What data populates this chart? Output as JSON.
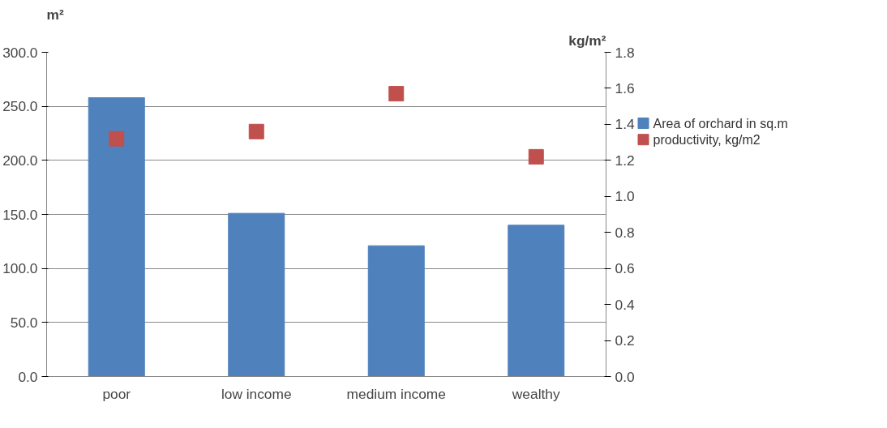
{
  "chart_data": {
    "type": "bar",
    "ylabel": "m²",
    "y2label": "kg/m²",
    "categories": [
      "poor",
      "low income",
      "medium income",
      "wealthy"
    ],
    "series": [
      {
        "name": "Area of orchard in sq.m",
        "color": "#4f81bd",
        "values": [
          258,
          151,
          121,
          140
        ]
      },
      {
        "name": "productivity, kg/m2",
        "type": "scatter",
        "axis": "y2",
        "marker": "square",
        "color": "#c0504d",
        "values": [
          1.32,
          1.36,
          1.57,
          1.22
        ]
      }
    ],
    "ylim": [
      0,
      300
    ],
    "yticks": [
      {
        "value": 0,
        "label": "0.0"
      },
      {
        "value": 50,
        "label": "50.0"
      },
      {
        "value": 100,
        "label": "100.0"
      },
      {
        "value": 150,
        "label": "150.0"
      },
      {
        "value": 200,
        "label": "200.0"
      },
      {
        "value": 250,
        "label": "250.0"
      },
      {
        "value": 300,
        "label": "300.0"
      }
    ],
    "y2lim": [
      0,
      1.8
    ],
    "y2ticks": [
      {
        "value": 0,
        "label": "0.0"
      },
      {
        "value": 0.2,
        "label": "0.2"
      },
      {
        "value": 0.4,
        "label": "0.4"
      },
      {
        "value": 0.6,
        "label": "0.6"
      },
      {
        "value": 0.8,
        "label": "0.8"
      },
      {
        "value": 1.0,
        "label": "1.0"
      },
      {
        "value": 1.2,
        "label": "1.2"
      },
      {
        "value": 1.4,
        "label": "1.4"
      },
      {
        "value": 1.6,
        "label": "1.6"
      },
      {
        "value": 1.8,
        "label": "1.8"
      }
    ],
    "grid": "y",
    "legend": "right"
  }
}
